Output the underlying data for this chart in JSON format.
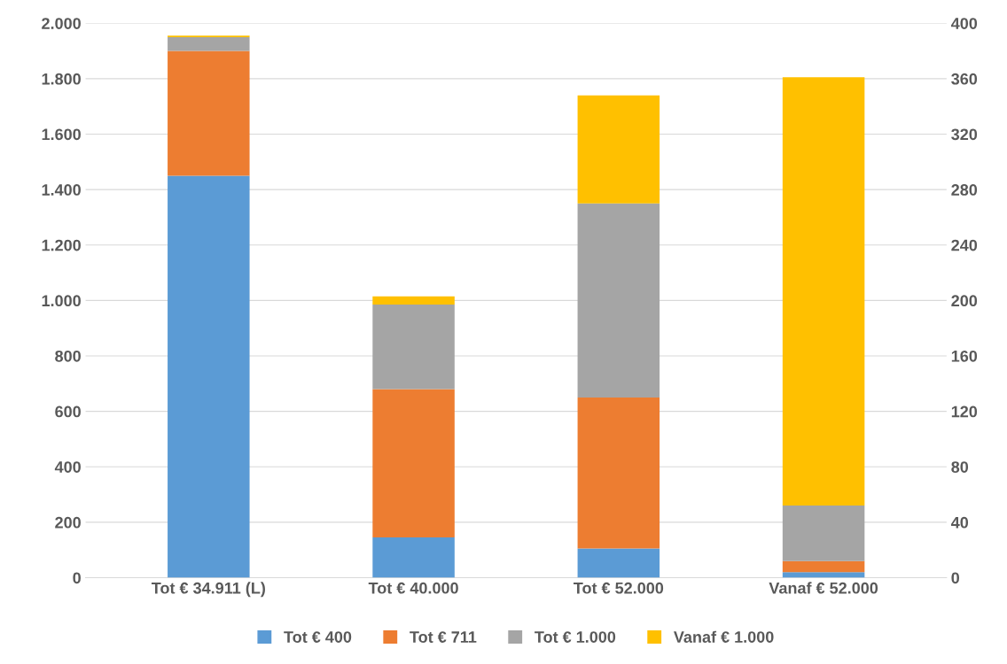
{
  "chart_data": {
    "type": "bar",
    "stacked": true,
    "categories": [
      "Tot € 34.911 (L)",
      "Tot € 40.000",
      "Tot € 52.000",
      "Vanaf € 52.000"
    ],
    "series": [
      {
        "name": "Tot € 400",
        "color": "#5b9bd5",
        "values": [
          1450,
          145,
          105,
          20
        ]
      },
      {
        "name": "Tot € 711",
        "color": "#ed7d31",
        "values": [
          450,
          535,
          545,
          40
        ]
      },
      {
        "name": "Tot € 1.000",
        "color": "#a5a5a5",
        "values": [
          50,
          305,
          700,
          200
        ]
      },
      {
        "name": "Vanaf € 1.000",
        "color": "#ffc000",
        "values": [
          5,
          30,
          390,
          1545
        ]
      }
    ],
    "ylim": [
      0,
      2000
    ],
    "yticks": [
      0,
      200,
      400,
      600,
      800,
      {
        "value": 1000,
        "label": "1.000"
      },
      {
        "value": 1200,
        "label": "1.200"
      },
      {
        "value": 1400,
        "label": "1.400"
      },
      {
        "value": 1600,
        "label": "1.600"
      },
      {
        "value": 1800,
        "label": "1.800"
      },
      {
        "value": 2000,
        "label": "2.000"
      }
    ],
    "y2lim": [
      0,
      400
    ],
    "y2ticks": [
      0,
      40,
      80,
      120,
      160,
      200,
      240,
      280,
      320,
      360,
      400
    ],
    "grid": "y",
    "legend": "bottom"
  }
}
